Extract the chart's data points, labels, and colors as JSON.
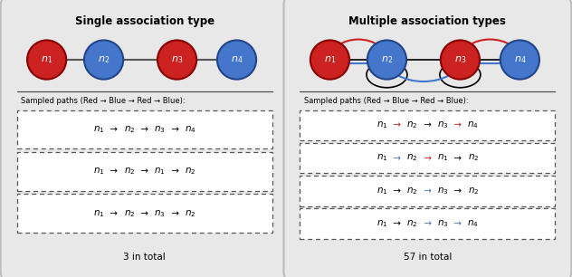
{
  "left_title": "Single association type",
  "right_title": "Multiple association types",
  "bg_color": "#e8e8e8",
  "node_red": "#cc2222",
  "node_blue": "#4477cc",
  "left_paths": [
    [
      [
        "n_1",
        "k"
      ],
      [
        "→",
        "k"
      ],
      [
        "n_2",
        "k"
      ],
      [
        "→",
        "k"
      ],
      [
        "n_3",
        "k"
      ],
      [
        "→",
        "k"
      ],
      [
        "n_4",
        "k"
      ]
    ],
    [
      [
        "n_1",
        "k"
      ],
      [
        "→",
        "k"
      ],
      [
        "n_2",
        "k"
      ],
      [
        "→",
        "k"
      ],
      [
        "n_1",
        "k"
      ],
      [
        "→",
        "k"
      ],
      [
        "n_2",
        "k"
      ]
    ],
    [
      [
        "n_1",
        "k"
      ],
      [
        "→",
        "k"
      ],
      [
        "n_2",
        "k"
      ],
      [
        "→",
        "k"
      ],
      [
        "n_3",
        "k"
      ],
      [
        "→",
        "k"
      ],
      [
        "n_2",
        "k"
      ]
    ]
  ],
  "right_paths": [
    [
      [
        "n_1",
        "k"
      ],
      [
        "→",
        "r"
      ],
      [
        "n_2",
        "k"
      ],
      [
        "→",
        "k"
      ],
      [
        "n_3",
        "k"
      ],
      [
        "→",
        "r"
      ],
      [
        "n_4",
        "k"
      ]
    ],
    [
      [
        "n_1",
        "k"
      ],
      [
        "→",
        "b"
      ],
      [
        "n_2",
        "k"
      ],
      [
        "→",
        "r"
      ],
      [
        "n_1",
        "k"
      ],
      [
        "→",
        "k"
      ],
      [
        "n_2",
        "k"
      ]
    ],
    [
      [
        "n_1",
        "k"
      ],
      [
        "→",
        "k"
      ],
      [
        "n_2",
        "k"
      ],
      [
        "→",
        "b"
      ],
      [
        "n_3",
        "k"
      ],
      [
        "→",
        "k"
      ],
      [
        "n_2",
        "k"
      ]
    ],
    [
      [
        "n_1",
        "k"
      ],
      [
        "→",
        "k"
      ],
      [
        "n_2",
        "k"
      ],
      [
        "→",
        "b"
      ],
      [
        "n_3",
        "k"
      ],
      [
        "→",
        "b"
      ],
      [
        "n_4",
        "k"
      ]
    ]
  ],
  "left_total": "3 in total",
  "right_total": "57 in total"
}
